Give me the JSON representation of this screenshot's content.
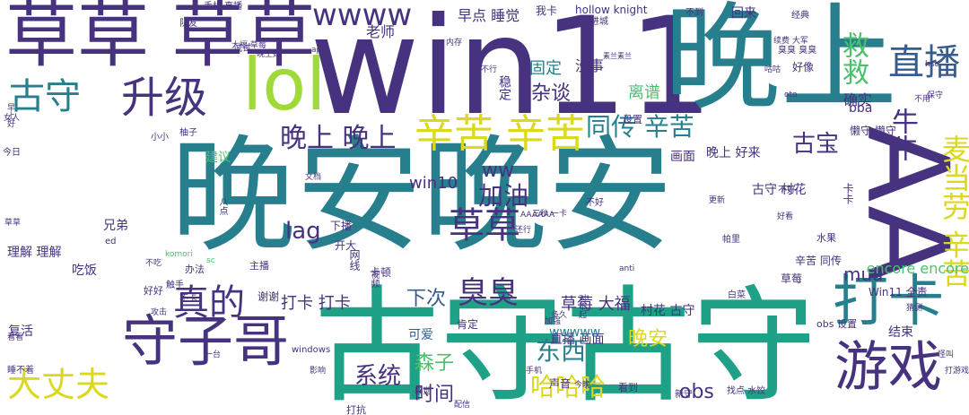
{
  "palette": {
    "purple": "#46327e",
    "blue": "#365c8d",
    "teal": "#277f8e",
    "green": "#1fa187",
    "lime": "#4ac16d",
    "lightgreen": "#a0da39",
    "yellow": "#dbd91f"
  },
  "words": [
    "晚安晚安",
    "古守古守",
    "win11",
    "晚上",
    "草草 草草",
    "AA",
    "打卡",
    "守子哥",
    "游戏",
    "升级",
    "lol",
    "古守",
    "辛苦 辛苦",
    "直播",
    "wwww",
    "真的",
    "草草",
    "大丈夫",
    "臭臭",
    "救救",
    "晚上 晚上",
    "牛牛",
    "麦当劳 辛苦",
    "同传 辛苦",
    "加油",
    "古宝",
    "obs",
    "系统",
    "东西",
    "哈哈哈",
    "时间",
    "森子",
    "lag",
    "下次",
    "杂谈",
    "离谱",
    "固定",
    "早点 睡觉",
    "确实",
    "打卡 打卡",
    "草莓 大福",
    "晚安",
    "mua",
    "ww",
    "老师",
    "没事",
    "win10",
    "encore encore",
    "理解 理解",
    "吃饭",
    "复活",
    "建议",
    "兄弟",
    "结束",
    "稳定",
    "直播 画面",
    "古守 村花",
    "村花 古守",
    "画面",
    "晚上 好来",
    "bba",
    "hollow knight",
    "Win11 全责",
    "卡卡",
    "回来",
    "懒守 懒守",
    "辛苦 同传",
    "草莓",
    "wwwww",
    "可爱",
    "肯定",
    "下播",
    "开大",
    "网线",
    "卡顿",
    "视频",
    "谢谢",
    "主播",
    "办法",
    "好像",
    "我卡",
    "设置",
    "臭臭 臭臭",
    "经典",
    "不到",
    "进城",
    "队友",
    "手机 直播",
    "声音",
    "看到",
    "新守",
    "打抗",
    "水果",
    "obs 设置",
    "好好",
    "试试",
    "触手",
    "今日",
    "不好",
    "windows",
    "不卡",
    "帕里",
    "找点 水饺",
    "八点",
    "白菜",
    "文档",
    "不吃",
    "三秒 一卡",
    "AAAAAA",
    "sc",
    "komori",
    "anti",
    "还行",
    "加强",
    "不好",
    "小小",
    "柚子",
    "草草",
    "ed",
    "看看",
    "睡不着",
    "影响",
    "多久",
    "对不起",
    "大福 草莓",
    "素兰素兰",
    "ap",
    "晚上好",
    "内存",
    "不行",
    "更新",
    "oto",
    "hso",
    "续费 大军",
    "咕咕",
    "不用",
    "早上好",
    "一台",
    "攻击",
    "女人",
    "今晚",
    "怪叫",
    "保守",
    "好看",
    "打游戏",
    "猜测",
    "手机",
    "配信",
    "感觉",
    "强强",
    "版本",
    "nice",
    "man",
    "test",
    "喜欢",
    "弹幕",
    "日本",
    "pc"
  ]
}
